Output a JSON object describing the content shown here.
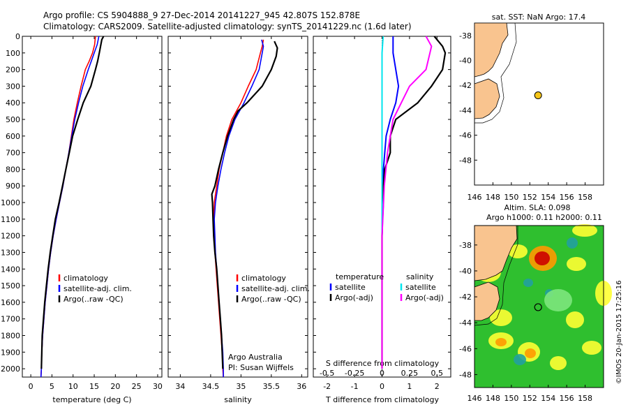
{
  "header": {
    "line1": "Argo profile: CS 5904888_9 27-Dec-2014 20141227_945 42.807S 152.878E",
    "line2": "Climatology: CARS2009. Satellite-adjusted climatology: synTS_20141229.nc (1.6d later)"
  },
  "colors": {
    "climatology": "#ff0000",
    "satellite": "#0000ff",
    "argo": "#000000",
    "salinity_satellite": "#00e5ee",
    "salinity_argo": "#ff00ff",
    "land": "#f9c48f"
  },
  "depth_axis": {
    "ylim": [
      0,
      2050
    ],
    "ticks": [
      "0",
      "100",
      "200",
      "300",
      "400",
      "500",
      "600",
      "700",
      "800",
      "900",
      "1000",
      "1100",
      "1200",
      "1300",
      "1400",
      "1500",
      "1600",
      "1700",
      "1800",
      "1900",
      "2000"
    ]
  },
  "chart_data": [
    {
      "type": "line",
      "xlabel": "temperature (deg C)",
      "xlim": [
        -2,
        31
      ],
      "xticks": [
        "0",
        "5",
        "10",
        "15",
        "20",
        "25",
        "30"
      ],
      "legend": [
        "climatology",
        "satellite-adj. clim.",
        "Argo(..raw -QC)"
      ],
      "series": [
        {
          "name": "climatology",
          "points": [
            [
              15.3,
              0
            ],
            [
              15.1,
              50
            ],
            [
              14.6,
              100
            ],
            [
              13.8,
              150
            ],
            [
              12.9,
              200
            ],
            [
              11.9,
              300
            ],
            [
              11.0,
              400
            ],
            [
              10.2,
              500
            ],
            [
              9.6,
              600
            ],
            [
              9.0,
              700
            ],
            [
              8.3,
              800
            ],
            [
              7.6,
              900
            ],
            [
              6.8,
              1000
            ],
            [
              6.0,
              1100
            ],
            [
              5.3,
              1200
            ],
            [
              4.7,
              1300
            ],
            [
              4.2,
              1400
            ],
            [
              3.8,
              1500
            ],
            [
              3.4,
              1600
            ],
            [
              3.1,
              1700
            ],
            [
              2.8,
              1800
            ],
            [
              2.6,
              1900
            ],
            [
              2.5,
              2000
            ],
            [
              2.4,
              2050
            ]
          ]
        },
        {
          "name": "satellite-adj. clim.",
          "points": [
            [
              16.1,
              0
            ],
            [
              15.7,
              50
            ],
            [
              15.0,
              100
            ],
            [
              14.3,
              150
            ],
            [
              13.6,
              200
            ],
            [
              12.3,
              300
            ],
            [
              11.3,
              400
            ],
            [
              10.4,
              500
            ],
            [
              9.7,
              600
            ],
            [
              9.0,
              700
            ],
            [
              8.3,
              800
            ],
            [
              7.6,
              900
            ],
            [
              6.8,
              1000
            ],
            [
              6.0,
              1100
            ],
            [
              5.3,
              1200
            ],
            [
              4.7,
              1300
            ],
            [
              4.2,
              1400
            ],
            [
              3.8,
              1500
            ],
            [
              3.4,
              1600
            ],
            [
              3.1,
              1700
            ],
            [
              2.8,
              1800
            ],
            [
              2.6,
              1900
            ],
            [
              2.5,
              2000
            ],
            [
              2.4,
              2050
            ]
          ]
        },
        {
          "name": "Argo(..raw -QC)",
          "points": [
            [
              17.2,
              0
            ],
            [
              16.8,
              20
            ],
            [
              16.5,
              60
            ],
            [
              16.2,
              100
            ],
            [
              15.8,
              150
            ],
            [
              15.3,
              200
            ],
            [
              14.2,
              300
            ],
            [
              12.4,
              400
            ],
            [
              11.1,
              500
            ],
            [
              9.9,
              600
            ],
            [
              9.1,
              700
            ],
            [
              8.3,
              800
            ],
            [
              7.5,
              900
            ],
            [
              6.7,
              1000
            ],
            [
              5.8,
              1100
            ],
            [
              5.2,
              1200
            ],
            [
              4.6,
              1300
            ],
            [
              4.1,
              1400
            ],
            [
              3.7,
              1500
            ],
            [
              3.3,
              1600
            ],
            [
              3.0,
              1700
            ],
            [
              2.7,
              1800
            ],
            [
              2.6,
              1900
            ],
            [
              2.5,
              2000
            ]
          ]
        }
      ]
    },
    {
      "type": "line",
      "xlabel": "salinity",
      "xlim": [
        33.8,
        36.1
      ],
      "xticks": [
        "34",
        "34.5",
        "35",
        "35.5",
        "36"
      ],
      "legend": [
        "climatology",
        "satellite-adj. clim.",
        "Argo(..raw -QC)"
      ],
      "note1": "Argo Australia",
      "note2": "PI: Susan Wijffels",
      "series": [
        {
          "name": "climatology",
          "points": [
            [
              35.37,
              20
            ],
            [
              35.35,
              60
            ],
            [
              35.32,
              100
            ],
            [
              35.25,
              200
            ],
            [
              35.12,
              300
            ],
            [
              35.0,
              400
            ],
            [
              34.85,
              500
            ],
            [
              34.76,
              600
            ],
            [
              34.7,
              700
            ],
            [
              34.64,
              800
            ],
            [
              34.6,
              900
            ],
            [
              34.56,
              1000
            ],
            [
              34.55,
              1100
            ],
            [
              34.56,
              1200
            ],
            [
              34.57,
              1300
            ],
            [
              34.59,
              1400
            ],
            [
              34.61,
              1500
            ],
            [
              34.63,
              1600
            ],
            [
              34.65,
              1700
            ],
            [
              34.67,
              1800
            ],
            [
              34.69,
              1900
            ],
            [
              34.7,
              2000
            ],
            [
              34.71,
              2050
            ]
          ]
        },
        {
          "name": "satellite-adj. clim.",
          "points": [
            [
              35.34,
              20
            ],
            [
              35.37,
              60
            ],
            [
              35.35,
              100
            ],
            [
              35.3,
              200
            ],
            [
              35.18,
              300
            ],
            [
              35.05,
              400
            ],
            [
              34.9,
              500
            ],
            [
              34.8,
              600
            ],
            [
              34.73,
              700
            ],
            [
              34.67,
              800
            ],
            [
              34.62,
              900
            ],
            [
              34.58,
              1000
            ],
            [
              34.56,
              1100
            ],
            [
              34.57,
              1200
            ],
            [
              34.58,
              1300
            ],
            [
              34.6,
              1400
            ],
            [
              34.62,
              1500
            ],
            [
              34.64,
              1600
            ],
            [
              34.66,
              1700
            ],
            [
              34.68,
              1800
            ],
            [
              34.7,
              1900
            ],
            [
              34.71,
              2000
            ],
            [
              34.71,
              2050
            ]
          ]
        },
        {
          "name": "Argo(..raw -QC)",
          "points": [
            [
              35.55,
              30
            ],
            [
              35.6,
              70
            ],
            [
              35.58,
              120
            ],
            [
              35.5,
              200
            ],
            [
              35.35,
              300
            ],
            [
              35.1,
              400
            ],
            [
              34.95,
              450
            ],
            [
              34.88,
              500
            ],
            [
              34.78,
              600
            ],
            [
              34.7,
              700
            ],
            [
              34.63,
              800
            ],
            [
              34.57,
              900
            ],
            [
              34.52,
              950
            ],
            [
              34.53,
              1000
            ],
            [
              34.54,
              1100
            ],
            [
              34.55,
              1200
            ],
            [
              34.57,
              1300
            ],
            [
              34.6,
              1400
            ],
            [
              34.62,
              1500
            ],
            [
              34.64,
              1600
            ],
            [
              34.66,
              1700
            ],
            [
              34.68,
              1800
            ],
            [
              34.69,
              1900
            ],
            [
              34.7,
              2000
            ]
          ]
        }
      ]
    },
    {
      "type": "line",
      "xlabel": "T difference from climatology",
      "xlim": [
        -2.5,
        2.5
      ],
      "xticks": [
        "-2",
        "-1",
        "0",
        "1",
        "2"
      ],
      "top_label": "S difference from climatology",
      "top_ticks": [
        "-0.5",
        "-0.25",
        "0",
        "0.25",
        "0.5"
      ],
      "legend_groups": [
        {
          "title": "temperature",
          "items": [
            "satellite",
            "Argo(-adj)"
          ]
        },
        {
          "title": "salinity",
          "items": [
            "satellite",
            "Argo(-adj)"
          ]
        }
      ],
      "series": [
        {
          "name": "T satellite",
          "points": [
            [
              0.4,
              0
            ],
            [
              0.4,
              100
            ],
            [
              0.5,
              200
            ],
            [
              0.6,
              300
            ],
            [
              0.5,
              400
            ],
            [
              0.3,
              500
            ],
            [
              0.15,
              600
            ],
            [
              0.1,
              700
            ],
            [
              0.05,
              800
            ],
            [
              0.05,
              900
            ],
            [
              0.05,
              1000
            ],
            [
              0.02,
              1100
            ],
            [
              0,
              1200
            ],
            [
              0,
              2000
            ]
          ]
        },
        {
          "name": "T Argo",
          "points": [
            [
              1.9,
              0
            ],
            [
              2.2,
              60
            ],
            [
              2.3,
              100
            ],
            [
              2.2,
              200
            ],
            [
              1.8,
              300
            ],
            [
              1.3,
              400
            ],
            [
              0.5,
              500
            ],
            [
              0.3,
              600
            ],
            [
              0.3,
              700
            ],
            [
              0.1,
              800
            ],
            [
              0.05,
              900
            ],
            [
              0.02,
              1000
            ],
            [
              0,
              1200
            ],
            [
              0,
              2000
            ]
          ]
        },
        {
          "name": "S satellite",
          "points": [
            [
              0.01,
              0
            ],
            [
              0.0,
              100
            ],
            [
              0.0,
              300
            ],
            [
              0.0,
              600
            ],
            [
              0.0,
              1000
            ],
            [
              0.0,
              2000
            ]
          ]
        },
        {
          "name": "S Argo",
          "points": [
            [
              0.4,
              0
            ],
            [
              0.45,
              60
            ],
            [
              0.4,
              200
            ],
            [
              0.25,
              300
            ],
            [
              0.1,
              500
            ],
            [
              0.05,
              700
            ],
            [
              0.02,
              900
            ],
            [
              0,
              1200
            ],
            [
              0,
              2000
            ]
          ]
        }
      ]
    },
    {
      "type": "scatter",
      "title": "sat. SST: NaN Argo: 17.4",
      "xlim": [
        146,
        160
      ],
      "ylim": [
        -50,
        -37
      ],
      "xticks": [
        "146",
        "148",
        "150",
        "152",
        "154",
        "156",
        "158"
      ],
      "yticks": [
        "-38",
        "-40",
        "-42",
        "-44",
        "-46",
        "-48"
      ],
      "points": [
        [
          152.9,
          -42.8
        ]
      ]
    },
    {
      "type": "heatmap",
      "title1": "Altim. SLA: 0.098",
      "title2": "Argo h1000: 0.11 h2000: 0.11",
      "xlim": [
        146,
        160
      ],
      "ylim": [
        -49,
        -36.5
      ],
      "xticks": [
        "146",
        "148",
        "150",
        "152",
        "154",
        "156",
        "158"
      ],
      "yticks": [
        "-38",
        "-40",
        "-42",
        "-44",
        "-46",
        "-48"
      ],
      "points": [
        [
          152.9,
          -42.8
        ]
      ]
    }
  ],
  "credit": "©IMOS 20-Jan-2015 17:25:16"
}
